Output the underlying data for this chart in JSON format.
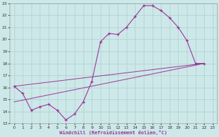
{
  "xlabel": "Windchill (Refroidissement éolien,°C)",
  "bg_color": "#cce8e8",
  "line_color": "#993399",
  "xlim": [
    -0.5,
    23.5
  ],
  "ylim": [
    13,
    23
  ],
  "xticks": [
    0,
    1,
    2,
    3,
    4,
    5,
    6,
    7,
    8,
    9,
    10,
    11,
    12,
    13,
    14,
    15,
    16,
    17,
    18,
    19,
    20,
    21,
    22,
    23
  ],
  "yticks": [
    13,
    14,
    15,
    16,
    17,
    18,
    19,
    20,
    21,
    22,
    23
  ],
  "line1_x": [
    0,
    1,
    2,
    3,
    4,
    5,
    6,
    7,
    8,
    9,
    10,
    11,
    12,
    13,
    14,
    15,
    16,
    17,
    18,
    19,
    20,
    21,
    22
  ],
  "line1_y": [
    16.1,
    15.5,
    14.1,
    14.4,
    14.6,
    14.1,
    13.3,
    13.8,
    14.8,
    16.5,
    19.8,
    20.5,
    20.4,
    21.0,
    21.9,
    22.8,
    22.8,
    22.4,
    21.8,
    21.0,
    19.9,
    18.0,
    18.0
  ],
  "line2_x": [
    0,
    22
  ],
  "line2_y": [
    16.1,
    18.0
  ],
  "line3_x": [
    0,
    22
  ],
  "line3_y": [
    14.8,
    18.0
  ]
}
